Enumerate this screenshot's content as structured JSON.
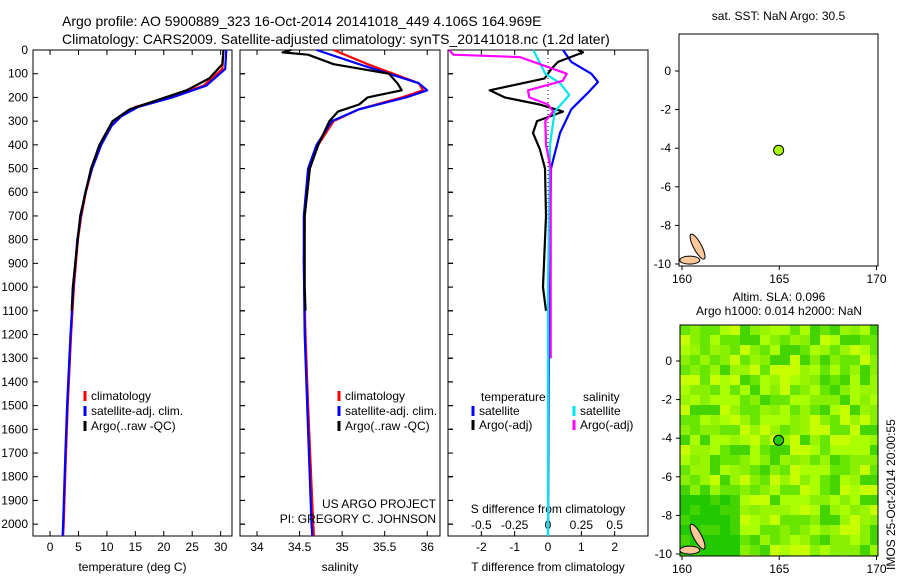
{
  "header": {
    "line1": "Argo profile: AO 5900889_323 16-Oct-2014 20141018_449 4.106S 164.969E",
    "line2": "Climatology: CARS2009. Satellite-adjusted climatology: synTS_20141018.nc (1.2d later)"
  },
  "colors": {
    "clim": "#ff0000",
    "sat": "#0000ff",
    "argo": "#000000",
    "ssat": "#00e5ee",
    "sargo": "#ff00ff",
    "land": "#ffc89a",
    "float": "#aaff00"
  },
  "chart_data": [
    {
      "type": "line",
      "id": "temp",
      "xlabel": "temperature (deg C)",
      "xlim": [
        -3,
        32
      ],
      "xticks": [
        0,
        5,
        10,
        15,
        20,
        25,
        30
      ],
      "ylim": [
        0,
        2050
      ],
      "yticks": [
        0,
        100,
        200,
        300,
        400,
        500,
        600,
        700,
        800,
        900,
        1000,
        1100,
        1200,
        1300,
        1400,
        1500,
        1600,
        1700,
        1800,
        1900,
        2000
      ],
      "legend": [
        "climatology",
        "satellite-adj. clim.",
        "Argo(..raw -QC)"
      ],
      "series": [
        {
          "name": "climatology",
          "depth": [
            0,
            80,
            150,
            200,
            240,
            280,
            320,
            400,
            500,
            600,
            700,
            800,
            1000,
            1200,
            1500,
            1700,
            2000,
            2050
          ],
          "values": [
            30.5,
            30.3,
            27,
            21,
            15,
            12.5,
            10.8,
            9,
            7.4,
            6.3,
            5.5,
            4.9,
            4.2,
            3.7,
            3.1,
            2.8,
            2.4,
            2.3
          ]
        },
        {
          "name": "satellite-adj. clim.",
          "depth": [
            0,
            80,
            150,
            200,
            240,
            280,
            320,
            400,
            500,
            600,
            700,
            800,
            1000,
            1200,
            1500,
            1700,
            2000,
            2050
          ],
          "values": [
            31,
            30.8,
            27.5,
            21.5,
            15.5,
            12.5,
            10.8,
            9,
            7.4,
            6.2,
            5.4,
            4.8,
            4.1,
            3.6,
            3,
            2.7,
            2.3,
            2.2
          ]
        },
        {
          "name": "Argo(..raw -QC)",
          "depth": [
            0,
            60,
            120,
            170,
            210,
            250,
            300,
            400,
            500,
            700,
            1000,
            1100
          ],
          "values": [
            30.5,
            30.3,
            28,
            24,
            19,
            14,
            11,
            8.7,
            7.2,
            5.3,
            4,
            3.8
          ]
        }
      ]
    },
    {
      "type": "line",
      "id": "sal",
      "xlabel": "salinity",
      "xlim": [
        33.8,
        36.15
      ],
      "xticks": [
        34,
        34.5,
        35,
        35.5,
        36
      ],
      "ylim": [
        0,
        2050
      ],
      "legend": [
        "climatology",
        "satellite-adj. clim.",
        "Argo(..raw -QC)"
      ],
      "annotation": [
        "US ARGO PROJECT",
        "PI: GREGORY C. JOHNSON"
      ],
      "series": [
        {
          "name": "climatology",
          "depth": [
            0,
            60,
            100,
            140,
            170,
            200,
            250,
            300,
            400,
            500,
            700,
            900,
            1200,
            1500,
            2000,
            2050
          ],
          "values": [
            34.9,
            35.3,
            35.6,
            35.9,
            35.95,
            35.7,
            35.2,
            34.9,
            34.72,
            34.62,
            34.56,
            34.55,
            34.57,
            34.6,
            34.66,
            34.67
          ]
        },
        {
          "name": "satellite-adj. clim.",
          "depth": [
            0,
            60,
            100,
            140,
            170,
            200,
            250,
            300,
            400,
            500,
            700,
            900,
            1200,
            1500,
            2000,
            2050
          ],
          "values": [
            34.7,
            35.2,
            35.55,
            35.9,
            36.0,
            35.75,
            35.2,
            34.88,
            34.7,
            34.6,
            34.55,
            34.55,
            34.56,
            34.59,
            34.64,
            34.65
          ]
        },
        {
          "name": "Argo(..raw -QC)",
          "depth": [
            0,
            10,
            20,
            60,
            100,
            140,
            170,
            200,
            230,
            260,
            300,
            400,
            500,
            700,
            1000,
            1100
          ],
          "values": [
            34.4,
            34.3,
            34.6,
            34.9,
            35.55,
            35.65,
            35.7,
            35.3,
            35.2,
            34.95,
            34.85,
            34.72,
            34.62,
            34.56,
            34.56,
            34.57
          ]
        }
      ]
    },
    {
      "type": "line",
      "id": "diff",
      "xlabel": "T difference from climatology",
      "xlabel2": "S difference from climatology",
      "xlim": [
        -3,
        3
      ],
      "xticks": [
        -2,
        -1,
        0,
        1,
        2
      ],
      "xticks2": [
        "-0.5",
        "-0.25",
        "0",
        "0.25",
        "0.5"
      ],
      "ylim": [
        0,
        2050
      ],
      "legend": {
        "temperature": "temperature",
        "salinity": "salinity",
        "items": [
          "satellite",
          "Argo(-adj)",
          "satellite",
          "Argo(-adj)"
        ]
      },
      "series": [
        {
          "name": "T satellite",
          "depth": [
            0,
            50,
            100,
            135,
            180,
            250,
            350,
            500,
            1000,
            2050
          ],
          "values": [
            0.45,
            0.7,
            1.3,
            1.5,
            1.2,
            0.7,
            0.36,
            0.09,
            0.03,
            0.0
          ]
        },
        {
          "name": "T Argo(-adj)",
          "depth": [
            0,
            10,
            50,
            80,
            120,
            170,
            200,
            230,
            260,
            300,
            350,
            420,
            500,
            700,
            1000,
            1100
          ],
          "values": [
            0.9,
            1.05,
            0.3,
            0.1,
            -0.1,
            -1.75,
            -1.3,
            -0.25,
            0.45,
            -0.33,
            -0.45,
            -0.24,
            -0.09,
            -0.06,
            -0.15,
            -0.06
          ]
        },
        {
          "name": "S satellite",
          "depth": [
            0,
            100,
            140,
            190,
            260,
            400,
            1000,
            2050
          ],
          "values": [
            -0.11,
            -0.02,
            0.09,
            0.16,
            0.05,
            0.015,
            0.0,
            0.0
          ]
        },
        {
          "name": "S Argo(-adj)",
          "depth": [
            0,
            20,
            30,
            100,
            130,
            170,
            200,
            230,
            260,
            300,
            400,
            500,
            1300
          ],
          "values": [
            -0.74,
            -0.71,
            -0.21,
            0.14,
            0.11,
            -0.15,
            -0.14,
            0.0,
            0.04,
            -0.02,
            -0.015,
            0.02,
            0.02
          ]
        }
      ]
    }
  ],
  "maps": [
    {
      "title": "sat. SST: NaN Argo: 30.5",
      "xticks": [
        160,
        165,
        170
      ],
      "yticks": [
        0,
        -2,
        -4,
        -6,
        -8,
        -10
      ],
      "float": [
        164.969,
        -4.106
      ],
      "shaded": false
    },
    {
      "title1": "Altim. SLA: 0.096",
      "title2": "Argo h1000: 0.014 h2000: NaN",
      "xticks": [
        160,
        165,
        170
      ],
      "yticks": [
        0,
        -2,
        -4,
        -6,
        -8,
        -10
      ],
      "float": [
        164.969,
        -4.106
      ],
      "shaded": true
    }
  ],
  "credit": "IMOS 25-Oct-2014 20:00:55"
}
